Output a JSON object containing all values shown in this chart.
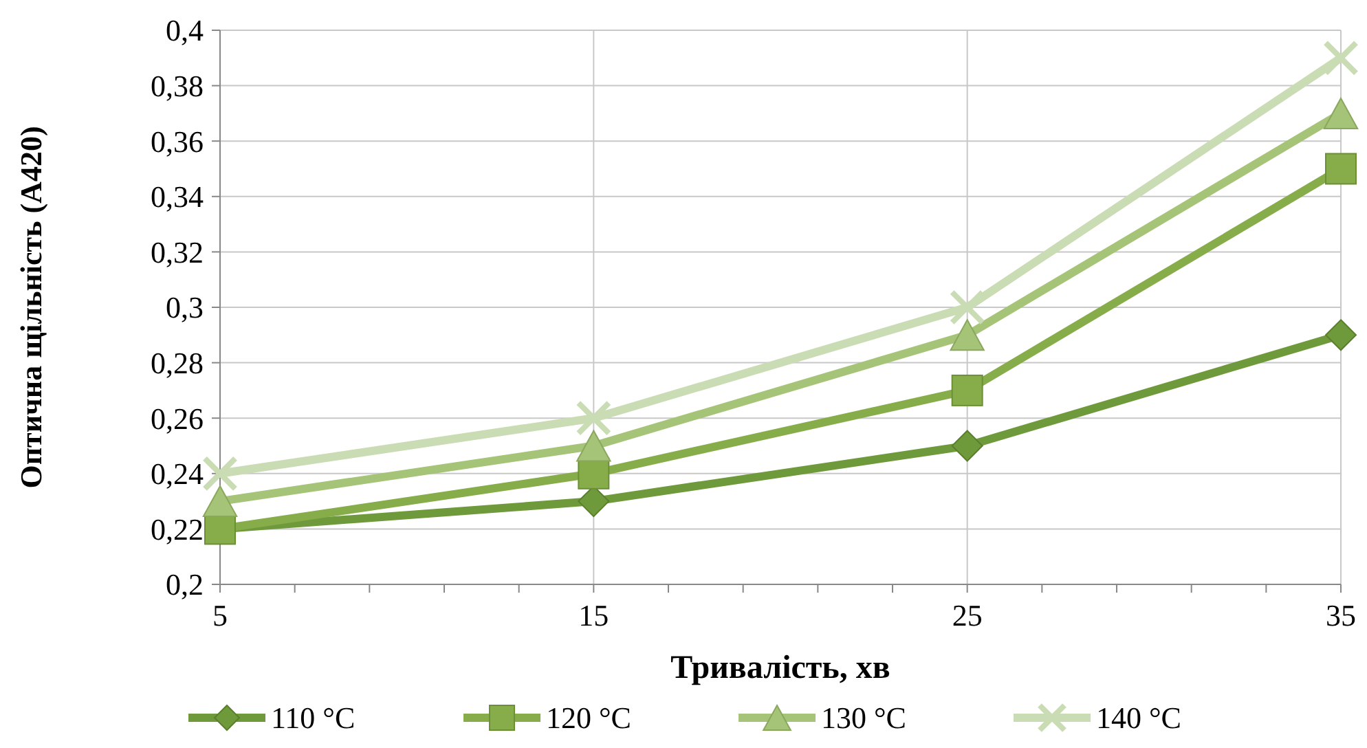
{
  "chart_data": {
    "type": "line",
    "xlabel": "Тривалість, хв",
    "ylabel": "Оптична щільність (А420)",
    "x": [
      5,
      15,
      25,
      35
    ],
    "series": [
      {
        "name": "110 °C",
        "color": "#6f9a3b",
        "marker": "diamond",
        "values": [
          0.22,
          0.23,
          0.25,
          0.29
        ]
      },
      {
        "name": "120 °C",
        "color": "#87ad4b",
        "marker": "square",
        "values": [
          0.22,
          0.24,
          0.27,
          0.35
        ]
      },
      {
        "name": "130 °C",
        "color": "#a5c477",
        "marker": "triangle",
        "values": [
          0.23,
          0.25,
          0.29,
          0.37
        ]
      },
      {
        "name": "140 °C",
        "color": "#cadcb3",
        "marker": "cross",
        "values": [
          0.24,
          0.26,
          0.3,
          0.39
        ]
      }
    ],
    "xlim": [
      5,
      35
    ],
    "xticks": [
      5,
      {
        "value": 7,
        "label": null
      },
      {
        "value": 9,
        "label": null
      },
      {
        "value": 11,
        "label": null
      },
      {
        "value": 13,
        "label": null
      },
      15,
      {
        "value": 17,
        "label": null
      },
      {
        "value": 19,
        "label": null
      },
      {
        "value": 21,
        "label": null
      },
      {
        "value": 23,
        "label": null
      },
      25,
      {
        "value": 27,
        "label": null
      },
      {
        "value": 29,
        "label": null
      },
      {
        "value": 31,
        "label": null
      },
      {
        "value": 33,
        "label": null
      },
      35
    ],
    "ylim": [
      0.2,
      0.4
    ],
    "yticks": [
      {
        "value": 0.2,
        "label": "0,2"
      },
      {
        "value": 0.22,
        "label": "0,22"
      },
      {
        "value": 0.24,
        "label": "0,24"
      },
      {
        "value": 0.26,
        "label": "0,26"
      },
      {
        "value": 0.28,
        "label": "0,28"
      },
      {
        "value": 0.3,
        "label": "0,3"
      },
      {
        "value": 0.32,
        "label": "0,32"
      },
      {
        "value": 0.34,
        "label": "0,34"
      },
      {
        "value": 0.36,
        "label": "0,36"
      },
      {
        "value": 0.38,
        "label": "0,38"
      },
      {
        "value": 0.4,
        "label": "0,4"
      }
    ],
    "grid": true,
    "legend": "bottom",
    "line_style": "solid"
  }
}
